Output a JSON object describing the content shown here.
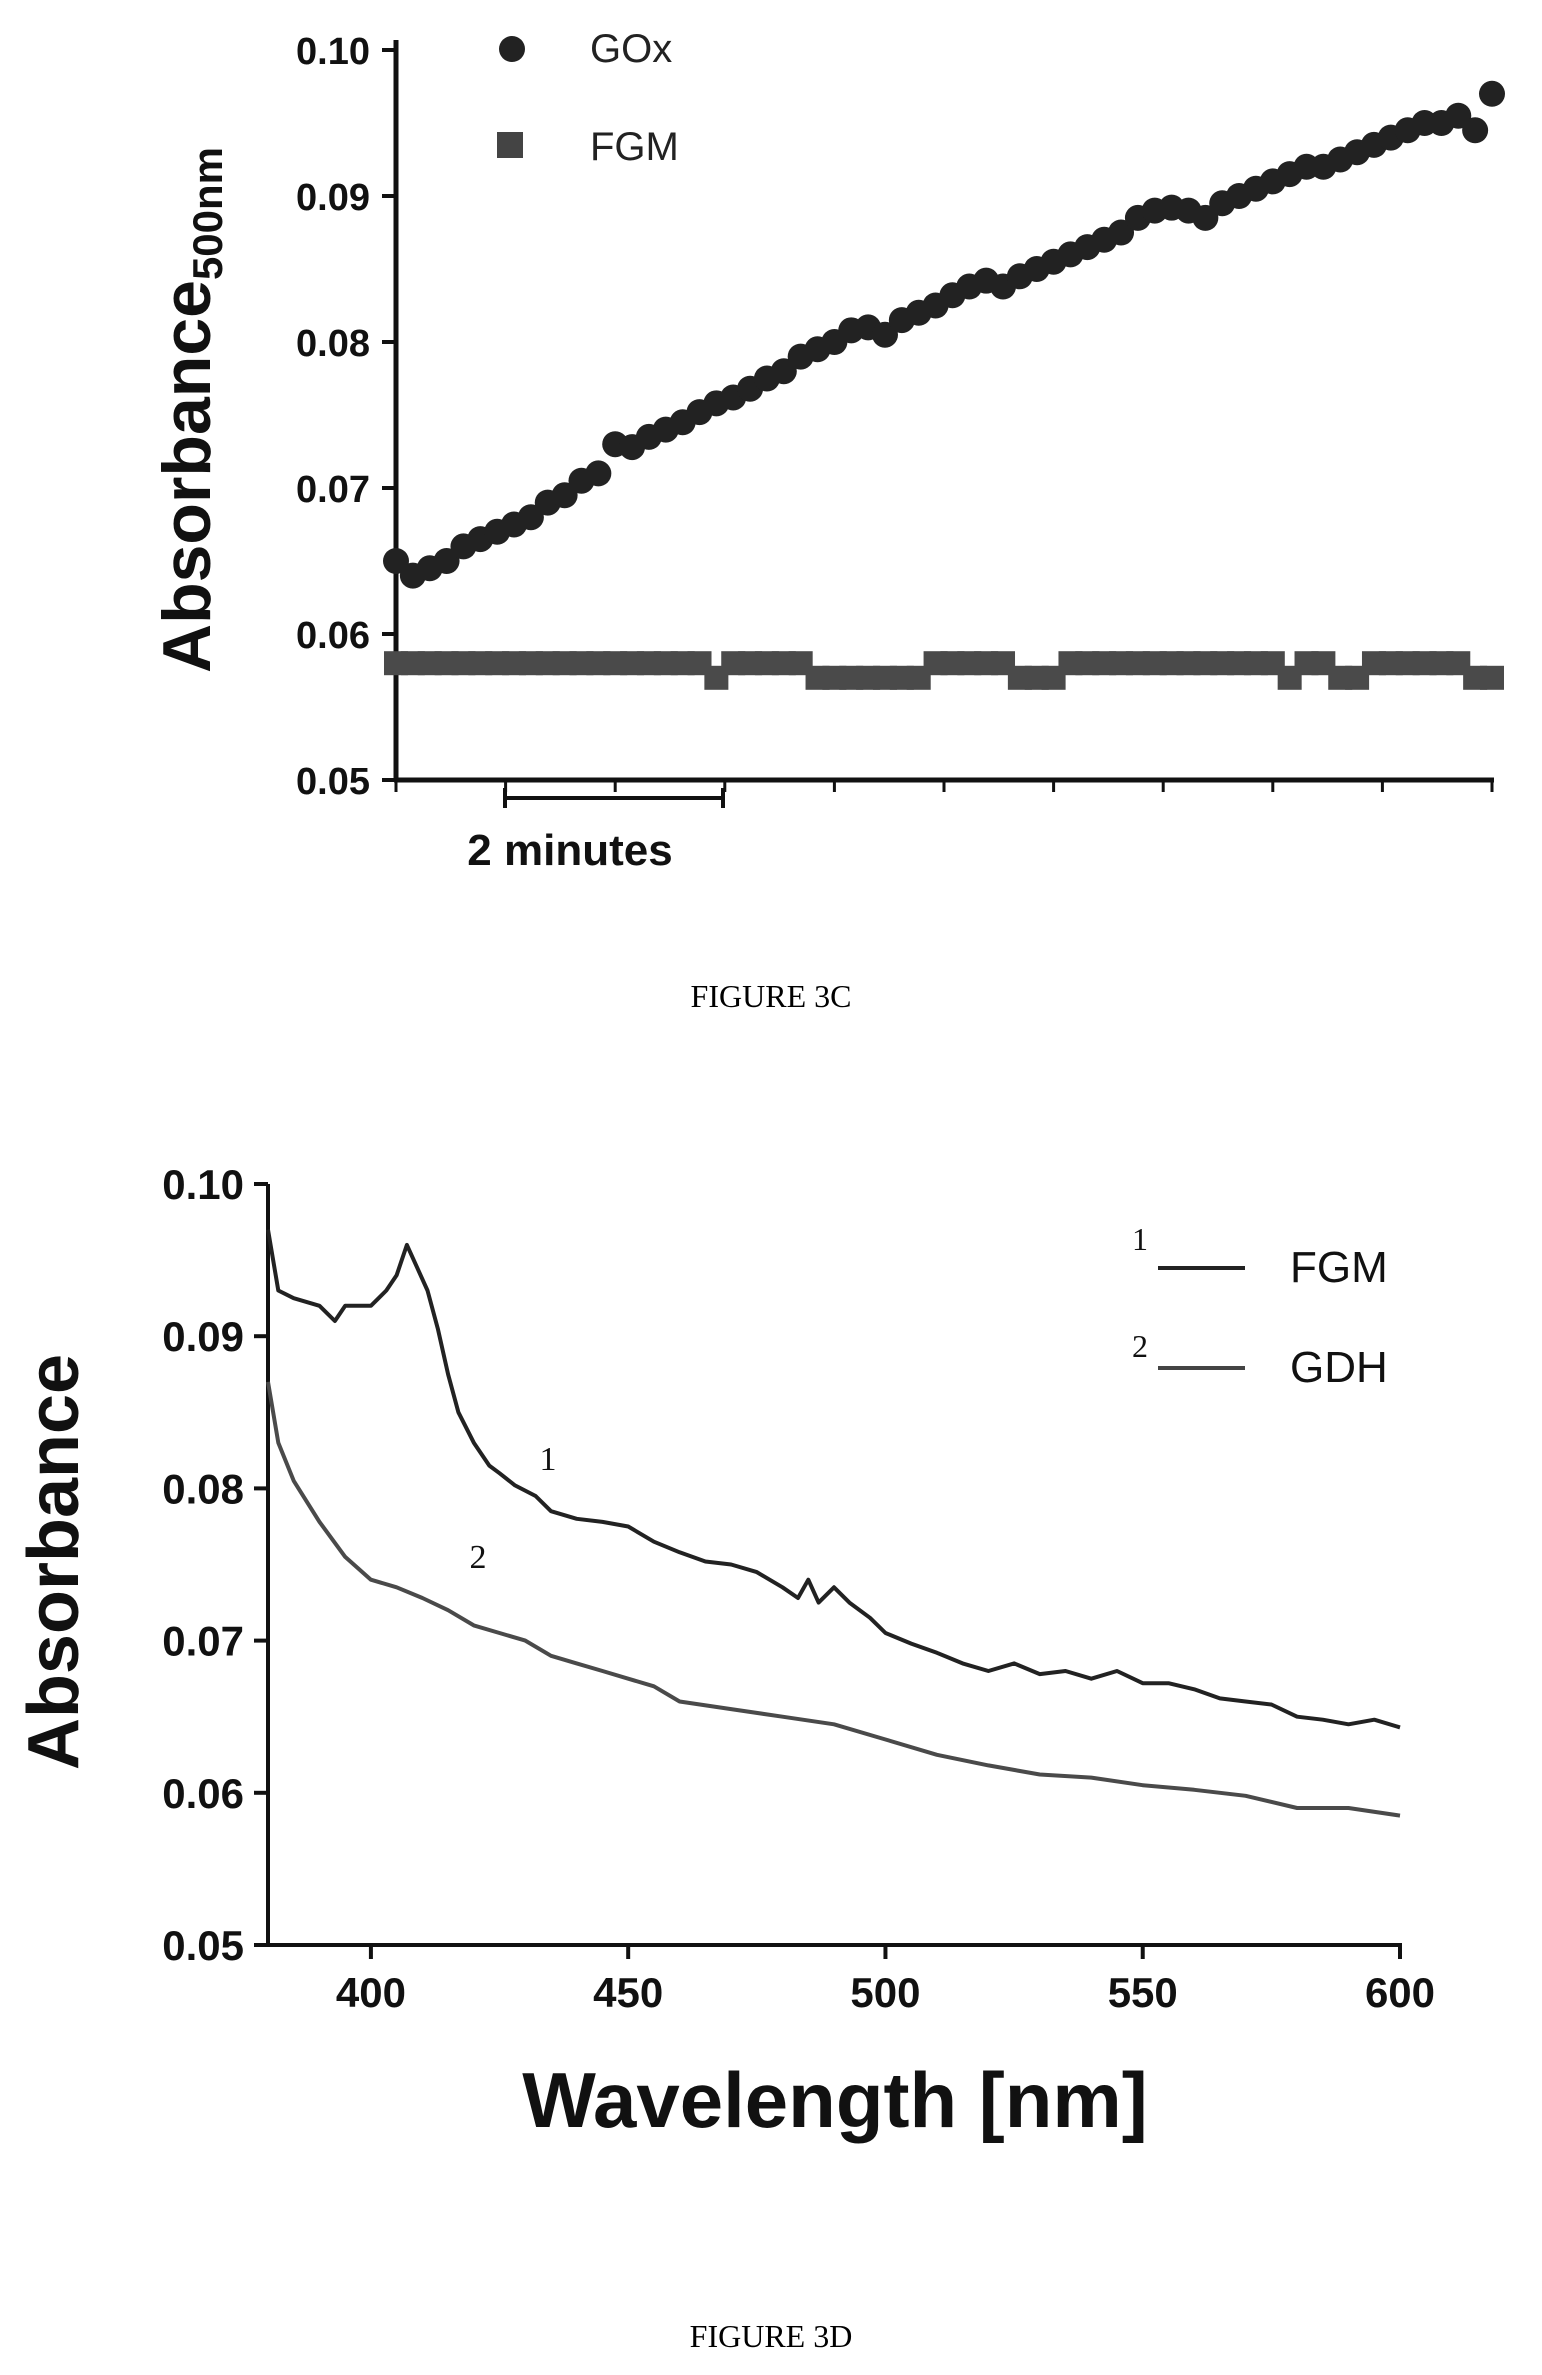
{
  "chart_data": [
    {
      "type": "scatter",
      "caption": "FIGURE 3C",
      "ylabel_main": "Absorbance",
      "ylabel_sub": "500nm",
      "xlabel": "",
      "scale_bar_label": "2 minutes",
      "ylim": [
        0.05,
        0.1
      ],
      "yticks": [
        "0.05",
        "0.06",
        "0.07",
        "0.08",
        "0.09",
        "0.10"
      ],
      "xlim": [
        0,
        61
      ],
      "legend": [
        "GOx",
        "FGM"
      ],
      "legend_position": "top-left",
      "series": [
        {
          "name": "GOx",
          "marker": "circle",
          "values": [
            0.065,
            0.064,
            0.0645,
            0.065,
            0.066,
            0.0665,
            0.067,
            0.0675,
            0.068,
            0.069,
            0.0695,
            0.0705,
            0.071,
            0.073,
            0.0728,
            0.0735,
            0.074,
            0.0745,
            0.0752,
            0.0758,
            0.0762,
            0.0768,
            0.0775,
            0.078,
            0.079,
            0.0795,
            0.08,
            0.0808,
            0.081,
            0.0805,
            0.0815,
            0.082,
            0.0825,
            0.0832,
            0.0838,
            0.0842,
            0.0838,
            0.0845,
            0.085,
            0.0855,
            0.086,
            0.0865,
            0.087,
            0.0875,
            0.0885,
            0.089,
            0.0892,
            0.089,
            0.0885,
            0.0895,
            0.09,
            0.0905,
            0.091,
            0.0915,
            0.092,
            0.092,
            0.0925,
            0.093,
            0.0935,
            0.094,
            0.0945,
            0.095,
            0.095,
            0.0955,
            0.0945,
            0.097
          ]
        },
        {
          "name": "FGM",
          "marker": "square",
          "values": [
            0.058,
            0.058,
            0.058,
            0.058,
            0.058,
            0.058,
            0.058,
            0.058,
            0.058,
            0.058,
            0.058,
            0.058,
            0.058,
            0.058,
            0.058,
            0.058,
            0.058,
            0.058,
            0.058,
            0.057,
            0.058,
            0.058,
            0.058,
            0.058,
            0.058,
            0.057,
            0.057,
            0.057,
            0.057,
            0.057,
            0.057,
            0.057,
            0.058,
            0.058,
            0.058,
            0.058,
            0.058,
            0.057,
            0.057,
            0.057,
            0.058,
            0.058,
            0.058,
            0.058,
            0.058,
            0.058,
            0.058,
            0.058,
            0.058,
            0.058,
            0.058,
            0.058,
            0.058,
            0.057,
            0.058,
            0.058,
            0.057,
            0.057,
            0.058,
            0.058,
            0.058,
            0.058,
            0.058,
            0.058,
            0.057,
            0.057
          ]
        }
      ]
    },
    {
      "type": "line",
      "caption": "FIGURE 3D",
      "xlabel": "Wavelength [nm]",
      "ylabel": "Absorbance",
      "xlim": [
        380,
        600
      ],
      "ylim": [
        0.05,
        0.1
      ],
      "xticks": [
        "400",
        "450",
        "500",
        "550",
        "600"
      ],
      "yticks": [
        "0.05",
        "0.06",
        "0.07",
        "0.08",
        "0.09",
        "0.10"
      ],
      "legend": [
        "FGM",
        "GDH"
      ],
      "legend_numbers": [
        "1",
        "2"
      ],
      "legend_position": "top-right",
      "curve_labels": [
        "1",
        "2"
      ],
      "series": [
        {
          "name": "FGM",
          "x": [
            380,
            382,
            385,
            390,
            393,
            395,
            400,
            403,
            405,
            407,
            409,
            411,
            413,
            415,
            417,
            420,
            423,
            425,
            428,
            432,
            435,
            440,
            445,
            450,
            455,
            460,
            465,
            470,
            475,
            480,
            483,
            485,
            487,
            490,
            493,
            497,
            500,
            505,
            510,
            515,
            520,
            525,
            530,
            535,
            540,
            545,
            550,
            555,
            560,
            565,
            570,
            575,
            580,
            585,
            590,
            595,
            600
          ],
          "values": [
            0.097,
            0.093,
            0.0925,
            0.092,
            0.091,
            0.092,
            0.092,
            0.093,
            0.094,
            0.096,
            0.0945,
            0.093,
            0.0905,
            0.0875,
            0.085,
            0.083,
            0.0815,
            0.081,
            0.0802,
            0.0795,
            0.0785,
            0.078,
            0.0778,
            0.0775,
            0.0765,
            0.0758,
            0.0752,
            0.075,
            0.0745,
            0.0735,
            0.0728,
            0.074,
            0.0725,
            0.0735,
            0.0725,
            0.0715,
            0.0705,
            0.0698,
            0.0692,
            0.0685,
            0.068,
            0.0685,
            0.0678,
            0.068,
            0.0675,
            0.068,
            0.0672,
            0.0672,
            0.0668,
            0.0662,
            0.066,
            0.0658,
            0.065,
            0.0648,
            0.0645,
            0.0648,
            0.0643
          ]
        },
        {
          "name": "GDH",
          "x": [
            380,
            382,
            385,
            390,
            395,
            400,
            405,
            410,
            415,
            420,
            425,
            430,
            435,
            440,
            445,
            450,
            455,
            460,
            470,
            480,
            490,
            500,
            510,
            520,
            530,
            540,
            550,
            560,
            570,
            580,
            590,
            600
          ],
          "values": [
            0.087,
            0.083,
            0.0805,
            0.0778,
            0.0755,
            0.074,
            0.0735,
            0.0728,
            0.072,
            0.071,
            0.0705,
            0.07,
            0.069,
            0.0685,
            0.068,
            0.0675,
            0.067,
            0.066,
            0.0655,
            0.065,
            0.0645,
            0.0635,
            0.0625,
            0.0618,
            0.0612,
            0.061,
            0.0605,
            0.0602,
            0.0598,
            0.059,
            0.059,
            0.0585
          ]
        }
      ]
    }
  ]
}
